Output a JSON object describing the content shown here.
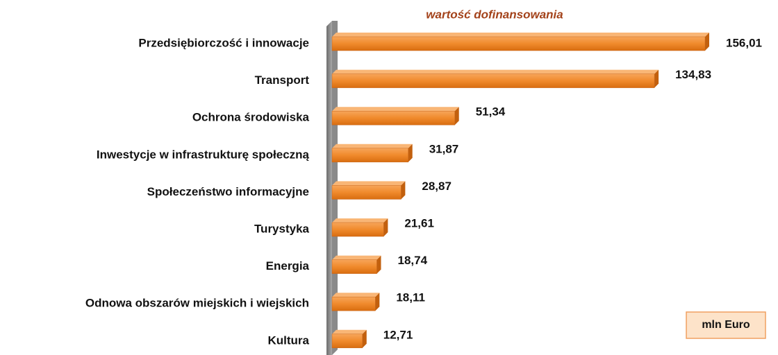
{
  "chart_data": {
    "type": "bar",
    "orientation": "horizontal",
    "title": "wartość dofinansowania",
    "categories": [
      "Przedsiębiorczość i innowacje",
      "Transport",
      "Ochrona środowiska",
      "Inwestycje w infrastrukturę społeczną",
      "Społeczeństwo informacyjne",
      "Turystyka",
      "Energia",
      "Odnowa obszarów miejskich i wiejskich",
      "Kultura"
    ],
    "values": [
      156.01,
      134.83,
      51.34,
      31.87,
      28.87,
      21.61,
      18.74,
      18.11,
      12.71
    ],
    "value_labels": [
      "156,01",
      "134,83",
      "51,34",
      "31,87",
      "28,87",
      "21,61",
      "18,74",
      "18,11",
      "12,71"
    ],
    "color": "#f08a2c",
    "unit_label": "mln Euro"
  }
}
